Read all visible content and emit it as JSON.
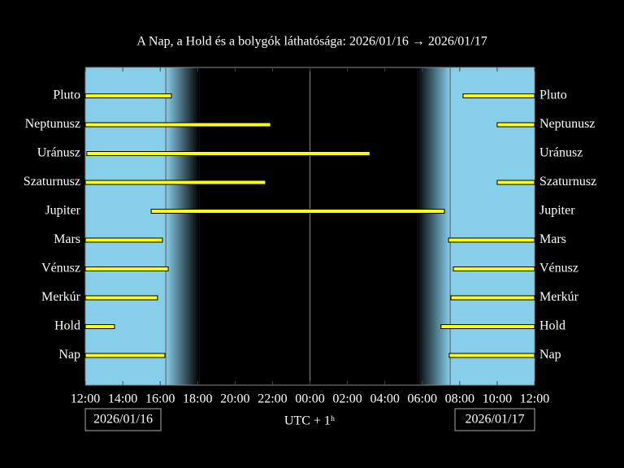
{
  "chart_data": {
    "type": "interval",
    "title": "A Nap, a Hold és a bolygók láthatósága: 2026/01/16 → 2026/01/17",
    "xlabel": "UTC + 1ʰ",
    "dates": [
      "2026/01/16",
      "2026/01/17"
    ],
    "categories": [
      "Pluto",
      "Neptunusz",
      "Uránusz",
      "Szaturnusz",
      "Jupiter",
      "Mars",
      "Vénusz",
      "Merkúr",
      "Hold",
      "Nap"
    ],
    "intervals": [
      [
        [
          0,
          4.6
        ],
        [
          20.18,
          24
        ]
      ],
      [
        [
          0,
          9.9
        ],
        [
          22.0,
          24
        ]
      ],
      [
        [
          0.08,
          15.2
        ]
      ],
      [
        [
          0,
          9.63
        ],
        [
          22.0,
          24
        ]
      ],
      [
        [
          3.52,
          19.18
        ]
      ],
      [
        [
          0,
          4.12
        ],
        [
          19.4,
          24
        ]
      ],
      [
        [
          0,
          4.43
        ],
        [
          19.66,
          24
        ]
      ],
      [
        [
          0,
          3.86
        ],
        [
          19.53,
          24
        ]
      ],
      [
        [
          0,
          1.56
        ],
        [
          19.0,
          24
        ]
      ],
      [
        [
          0,
          4.25
        ],
        [
          19.44,
          24
        ]
      ]
    ],
    "night": [
      4.3,
      19.49
    ],
    "twilight": [
      6.08,
      17.71
    ],
    "midnight": 12,
    "xlim": [
      0,
      24
    ],
    "xticks": [
      {
        "value": 0,
        "label": "12:00"
      },
      {
        "value": 2,
        "label": "14:00"
      },
      {
        "value": 4,
        "label": "16:00"
      },
      {
        "value": 6,
        "label": "18:00"
      },
      {
        "value": 8,
        "label": "20:00"
      },
      {
        "value": 10,
        "label": "22:00"
      },
      {
        "value": 12,
        "label": "00:00"
      },
      {
        "value": 14,
        "label": "02:00"
      },
      {
        "value": 16,
        "label": "04:00"
      },
      {
        "value": 18,
        "label": "06:00"
      },
      {
        "value": 20,
        "label": "08:00"
      },
      {
        "value": 22,
        "label": "10:00"
      },
      {
        "value": 24,
        "label": "12:00"
      }
    ],
    "color": "#ffff00",
    "day_color": "#87ceeb",
    "night_color": "#000000"
  }
}
